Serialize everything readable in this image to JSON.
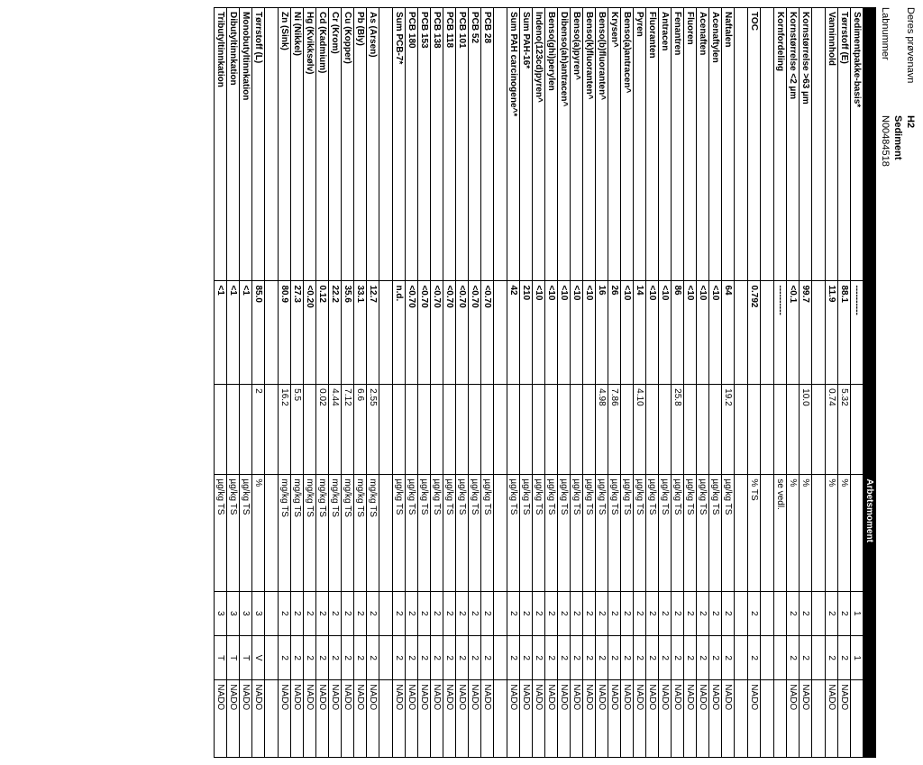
{
  "header": {
    "provenavn_label": "Deres prøvenavn",
    "provenavn_value": "H2",
    "type": "Sediment",
    "labnummer_label": "Labnummer",
    "labnummer_value": "N00484518"
  },
  "columns": {
    "arbetsmoment": "Arbetsmoment"
  },
  "rows": [
    {
      "param": "Sedimentpakke-basis*",
      "v1": "----------",
      "v2": "",
      "unit": "",
      "n1": "1",
      "n2": "1",
      "lab": ""
    },
    {
      "param": "Tørrstoff (E)",
      "v1": "88.1",
      "v2": "5.32",
      "unit": "%",
      "n1": "2",
      "n2": "2",
      "lab": "NADO"
    },
    {
      "param": "Vanninnhold",
      "v1": "11.9",
      "v2": "0.74",
      "unit": "%",
      "n1": "2",
      "n2": "2",
      "lab": "NADO"
    },
    {
      "param": "",
      "v1": "",
      "v2": "",
      "unit": "",
      "n1": "",
      "n2": "",
      "lab": ""
    },
    {
      "param": "Kornstørrelse >63 µm",
      "v1": "99.7",
      "v2": "10.0",
      "unit": "%",
      "n1": "2",
      "n2": "2",
      "lab": "NADO"
    },
    {
      "param": "Kornstørrelse <2 µm",
      "v1": "<0.1",
      "v2": "",
      "unit": "%",
      "n1": "2",
      "n2": "2",
      "lab": "NADO"
    },
    {
      "param": "Kornfordeling",
      "v1": "----------",
      "v2": "",
      "unit": "se vedl.",
      "n1": "",
      "n2": "",
      "lab": ""
    },
    {
      "param": "",
      "v1": "",
      "v2": "",
      "unit": "",
      "n1": "",
      "n2": "",
      "lab": ""
    },
    {
      "param": "TOC",
      "v1": "0.792",
      "v2": "",
      "unit": "% TS",
      "n1": "2",
      "n2": "2",
      "lab": "NADO"
    },
    {
      "param": "",
      "v1": "",
      "v2": "",
      "unit": "",
      "n1": "",
      "n2": "",
      "lab": ""
    },
    {
      "param": "Naftalen",
      "v1": "64",
      "v2": "19.2",
      "unit": "µg/kg TS",
      "n1": "2",
      "n2": "2",
      "lab": "NADO"
    },
    {
      "param": "Acenaftylen",
      "v1": "<10",
      "v2": "",
      "unit": "µg/kg TS",
      "n1": "2",
      "n2": "2",
      "lab": "NADO"
    },
    {
      "param": "Acenaften",
      "v1": "<10",
      "v2": "",
      "unit": "µg/kg TS",
      "n1": "2",
      "n2": "2",
      "lab": "NADO"
    },
    {
      "param": "Fluoren",
      "v1": "<10",
      "v2": "",
      "unit": "µg/kg TS",
      "n1": "2",
      "n2": "2",
      "lab": "NADO"
    },
    {
      "param": "Fenantren",
      "v1": "86",
      "v2": "25.8",
      "unit": "µg/kg TS",
      "n1": "2",
      "n2": "2",
      "lab": "NADO"
    },
    {
      "param": "Antracen",
      "v1": "<10",
      "v2": "",
      "unit": "µg/kg TS",
      "n1": "2",
      "n2": "2",
      "lab": "NADO"
    },
    {
      "param": "Fluoranten",
      "v1": "<10",
      "v2": "",
      "unit": "µg/kg TS",
      "n1": "2",
      "n2": "2",
      "lab": "NADO"
    },
    {
      "param": "Pyren",
      "v1": "14",
      "v2": "4.10",
      "unit": "µg/kg TS",
      "n1": "2",
      "n2": "2",
      "lab": "NADO"
    },
    {
      "param": "Benso(a)antracen^",
      "v1": "<10",
      "v2": "",
      "unit": "µg/kg TS",
      "n1": "2",
      "n2": "2",
      "lab": "NADO"
    },
    {
      "param": "Krysen^",
      "v1": "26",
      "v2": "7.86",
      "unit": "µg/kg TS",
      "n1": "2",
      "n2": "2",
      "lab": "NADO"
    },
    {
      "param": "Benso(b)fluoranten^",
      "v1": "16",
      "v2": "4.98",
      "unit": "µg/kg TS",
      "n1": "2",
      "n2": "2",
      "lab": "NADO"
    },
    {
      "param": "Benso(k)fluoranten^",
      "v1": "<10",
      "v2": "",
      "unit": "µg/kg TS",
      "n1": "2",
      "n2": "2",
      "lab": "NADO"
    },
    {
      "param": "Benso(a)pyren^",
      "v1": "<10",
      "v2": "",
      "unit": "µg/kg TS",
      "n1": "2",
      "n2": "2",
      "lab": "NADO"
    },
    {
      "param": "Dibenso(ah)antracen^",
      "v1": "<10",
      "v2": "",
      "unit": "µg/kg TS",
      "n1": "2",
      "n2": "2",
      "lab": "NADO"
    },
    {
      "param": "Benso(ghi)perylen",
      "v1": "<10",
      "v2": "",
      "unit": "µg/kg TS",
      "n1": "2",
      "n2": "2",
      "lab": "NADO"
    },
    {
      "param": "Indeno(123cd)pyren^",
      "v1": "<10",
      "v2": "",
      "unit": "µg/kg TS",
      "n1": "2",
      "n2": "2",
      "lab": "NADO"
    },
    {
      "param": "Sum PAH-16*",
      "v1": "210",
      "v2": "",
      "unit": "µg/kg TS",
      "n1": "2",
      "n2": "2",
      "lab": "NADO"
    },
    {
      "param": "Sum PAH carcinogene^*",
      "v1": "42",
      "v2": "",
      "unit": "µg/kg TS",
      "n1": "2",
      "n2": "2",
      "lab": "NADO"
    },
    {
      "param": "",
      "v1": "",
      "v2": "",
      "unit": "",
      "n1": "",
      "n2": "",
      "lab": ""
    },
    {
      "param": "PCB 28",
      "v1": "<0.70",
      "v2": "",
      "unit": "µg/kg TS",
      "n1": "2",
      "n2": "2",
      "lab": "NADO"
    },
    {
      "param": "PCB 52",
      "v1": "<0.70",
      "v2": "",
      "unit": "µg/kg TS",
      "n1": "2",
      "n2": "2",
      "lab": "NADO"
    },
    {
      "param": "PCB 101",
      "v1": "<0.70",
      "v2": "",
      "unit": "µg/kg TS",
      "n1": "2",
      "n2": "2",
      "lab": "NADO"
    },
    {
      "param": "PCB 118",
      "v1": "<0.70",
      "v2": "",
      "unit": "µg/kg TS",
      "n1": "2",
      "n2": "2",
      "lab": "NADO"
    },
    {
      "param": "PCB 138",
      "v1": "<0.70",
      "v2": "",
      "unit": "µg/kg TS",
      "n1": "2",
      "n2": "2",
      "lab": "NADO"
    },
    {
      "param": "PCB 153",
      "v1": "<0.70",
      "v2": "",
      "unit": "µg/kg TS",
      "n1": "2",
      "n2": "2",
      "lab": "NADO"
    },
    {
      "param": "PCB 180",
      "v1": "<0.70",
      "v2": "",
      "unit": "µg/kg TS",
      "n1": "2",
      "n2": "2",
      "lab": "NADO"
    },
    {
      "param": "Sum PCB-7*",
      "v1": "n.d.",
      "v2": "",
      "unit": "µg/kg TS",
      "n1": "2",
      "n2": "2",
      "lab": "NADO"
    },
    {
      "param": "",
      "v1": "",
      "v2": "",
      "unit": "",
      "n1": "",
      "n2": "",
      "lab": ""
    },
    {
      "param": "As (Arsen)",
      "v1": "12.7",
      "v2": "2.55",
      "unit": "mg/kg TS",
      "n1": "2",
      "n2": "2",
      "lab": "NADO"
    },
    {
      "param": "Pb (Bly)",
      "v1": "33.1",
      "v2": "6.6",
      "unit": "mg/kg TS",
      "n1": "2",
      "n2": "2",
      "lab": "NADO"
    },
    {
      "param": "Cu (Kopper)",
      "v1": "35.6",
      "v2": "7.12",
      "unit": "mg/kg TS",
      "n1": "2",
      "n2": "2",
      "lab": "NADO"
    },
    {
      "param": "Cr (Krom)",
      "v1": "22.2",
      "v2": "4.44",
      "unit": "mg/kg TS",
      "n1": "2",
      "n2": "2",
      "lab": "NADO"
    },
    {
      "param": "Cd (Kadmium)",
      "v1": "0.12",
      "v2": "0.02",
      "unit": "mg/kg TS",
      "n1": "2",
      "n2": "2",
      "lab": "NADO"
    },
    {
      "param": "Hg (Kvikksølv)",
      "v1": "<0.20",
      "v2": "",
      "unit": "mg/kg TS",
      "n1": "2",
      "n2": "2",
      "lab": "NADO"
    },
    {
      "param": "Ni (Nikkel)",
      "v1": "27.3",
      "v2": "5.5",
      "unit": "mg/kg TS",
      "n1": "2",
      "n2": "2",
      "lab": "NADO"
    },
    {
      "param": "Zn (Sink)",
      "v1": "80.9",
      "v2": "16.2",
      "unit": "mg/kg TS",
      "n1": "2",
      "n2": "2",
      "lab": "NADO"
    },
    {
      "param": "",
      "v1": "",
      "v2": "",
      "unit": "",
      "n1": "",
      "n2": "",
      "lab": ""
    },
    {
      "param": "Tørrstoff (L)",
      "v1": "85.0",
      "v2": "2",
      "unit": "%",
      "n1": "3",
      "n2": "V",
      "lab": "NADO"
    },
    {
      "param": "Monobutyltinnkation",
      "v1": "<1",
      "v2": "",
      "unit": "µg/kg TS",
      "n1": "3",
      "n2": "T",
      "lab": "NADO"
    },
    {
      "param": "Dibutyltinnkation",
      "v1": "<1",
      "v2": "",
      "unit": "µg/kg TS",
      "n1": "3",
      "n2": "T",
      "lab": "NADO"
    },
    {
      "param": "Tributyltinnkation",
      "v1": "<1",
      "v2": "",
      "unit": "µg/kg TS",
      "n1": "3",
      "n2": "T",
      "lab": "NADO"
    }
  ]
}
